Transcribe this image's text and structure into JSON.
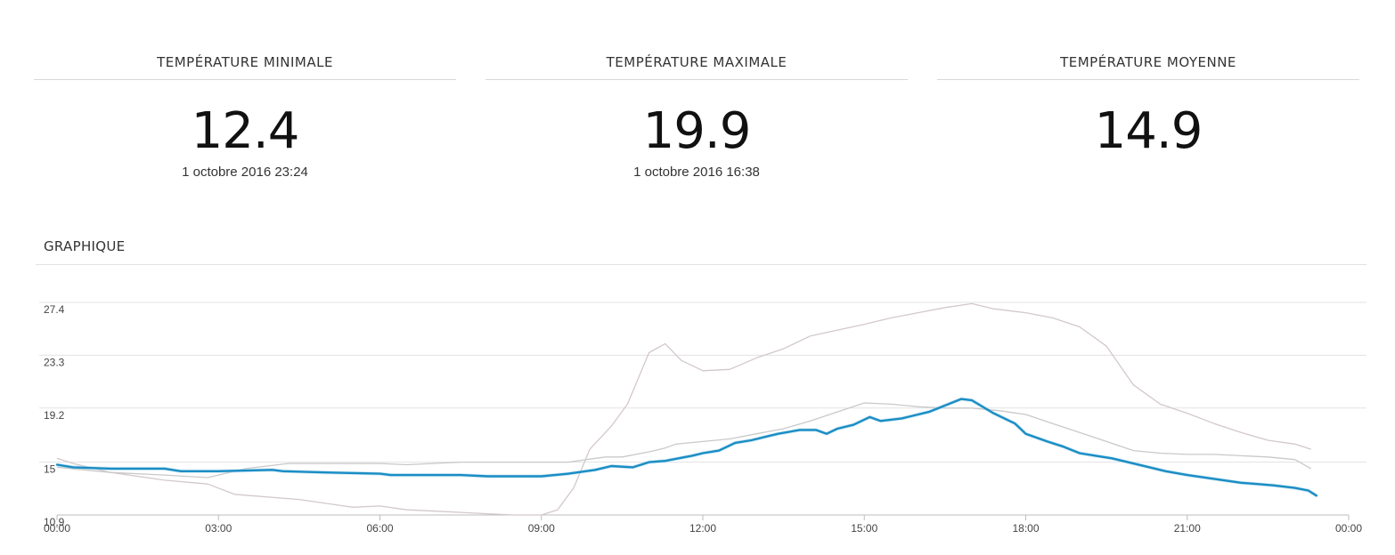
{
  "stats": [
    {
      "title": "TEMPÉRATURE MINIMALE",
      "value": "12.4",
      "date": "1 octobre 2016 23:24"
    },
    {
      "title": "TEMPÉRATURE MAXIMALE",
      "value": "19.9",
      "date": "1 octobre 2016 16:38"
    },
    {
      "title": "TEMPÉRATURE MOYENNE",
      "value": "14.9",
      "date": ""
    }
  ],
  "graph_title": "GRAPHIQUE",
  "colors": {
    "main": "#1a8dc4",
    "max": "#c9c9c9",
    "min": "#d3c8cc",
    "grid": "#e3e3e3"
  },
  "chart_data": {
    "type": "line",
    "y_ticks": [
      "27.4",
      "23.3",
      "19.2",
      "15",
      "10.9"
    ],
    "ylim": [
      10.9,
      27.4
    ],
    "x_ticks": [
      "00:00",
      "03:00",
      "06:00",
      "09:00",
      "12:00",
      "15:00",
      "18:00",
      "21:00",
      "00:00"
    ],
    "xlim": [
      0,
      24
    ],
    "grid": true,
    "series": [
      {
        "role": "main",
        "x": [
          0,
          0.3,
          1,
          2,
          2.3,
          3,
          4,
          4.2,
          5,
          6,
          6.2,
          7.5,
          8,
          9,
          9.5,
          10,
          10.3,
          10.7,
          11,
          11.3,
          11.8,
          12,
          12.3,
          12.6,
          12.9,
          13.2,
          13.4,
          13.8,
          14.1,
          14.3,
          14.5,
          14.8,
          15.1,
          15.3,
          15.7,
          16,
          16.2,
          16.5,
          16.8,
          17,
          17.4,
          17.8,
          18,
          18.4,
          18.7,
          19,
          19.3,
          19.6,
          20,
          20.3,
          20.6,
          21,
          21.5,
          22,
          22.3,
          22.6,
          23,
          23.25,
          23.4
        ],
        "y": [
          14.8,
          14.6,
          14.5,
          14.5,
          14.3,
          14.3,
          14.4,
          14.3,
          14.2,
          14.1,
          14.0,
          14.0,
          13.9,
          13.9,
          14.1,
          14.4,
          14.7,
          14.6,
          15.0,
          15.1,
          15.5,
          15.7,
          15.9,
          16.5,
          16.7,
          17.0,
          17.2,
          17.5,
          17.5,
          17.2,
          17.6,
          17.9,
          18.5,
          18.2,
          18.4,
          18.7,
          18.9,
          19.4,
          19.9,
          19.8,
          18.8,
          18.0,
          17.2,
          16.6,
          16.2,
          15.7,
          15.5,
          15.3,
          14.9,
          14.6,
          14.3,
          14.0,
          13.7,
          13.4,
          13.3,
          13.2,
          13.0,
          12.8,
          12.4
        ]
      },
      {
        "role": "max",
        "x": [
          0,
          0.5,
          1,
          2,
          2.8,
          3.5,
          4.3,
          5,
          6,
          6.5,
          7.5,
          8.5,
          9.5,
          10,
          10.2,
          10.5,
          11,
          11.3,
          11.5,
          12,
          12.5,
          13,
          13.5,
          14,
          14.5,
          15,
          15.5,
          16,
          16.5,
          17,
          17.5,
          18,
          18.5,
          19,
          19.5,
          20,
          20.5,
          21,
          21.5,
          22,
          22.5,
          23,
          23.3
        ],
        "y": [
          14.6,
          14.4,
          14.2,
          14.0,
          13.8,
          14.5,
          14.9,
          14.9,
          14.9,
          14.8,
          15.0,
          15.0,
          15.0,
          15.3,
          15.4,
          15.4,
          15.8,
          16.1,
          16.4,
          16.6,
          16.8,
          17.2,
          17.6,
          18.2,
          18.9,
          19.6,
          19.5,
          19.3,
          19.2,
          19.2,
          19.0,
          18.7,
          18.0,
          17.3,
          16.6,
          15.9,
          15.7,
          15.6,
          15.6,
          15.5,
          15.4,
          15.2,
          14.5
        ]
      },
      {
        "role": "min",
        "x": [
          0,
          0.3,
          1,
          2,
          2.8,
          3.3,
          4.5,
          5.5,
          6,
          6.5,
          7.5,
          8,
          8.5,
          9,
          9.3,
          9.6,
          9.9,
          10.3,
          10.6,
          11,
          11.3,
          11.6,
          12,
          12.5,
          13,
          13.5,
          14,
          15,
          15.5,
          16,
          16.5,
          17,
          17.4,
          18,
          18.5,
          19,
          19.5,
          20,
          20.5,
          21,
          21.5,
          22,
          22.5,
          23,
          23.3
        ],
        "y": [
          15.3,
          14.9,
          14.2,
          13.6,
          13.3,
          12.5,
          12.1,
          11.5,
          11.6,
          11.3,
          11.1,
          11.0,
          10.9,
          10.9,
          11.3,
          13.0,
          16.0,
          17.8,
          19.5,
          23.5,
          24.2,
          22.9,
          22.1,
          22.2,
          23.1,
          23.8,
          24.8,
          25.7,
          26.2,
          26.6,
          27.0,
          27.3,
          26.9,
          26.6,
          26.2,
          25.5,
          24.0,
          21.0,
          19.5,
          18.8,
          18.0,
          17.3,
          16.7,
          16.4,
          16.0
        ]
      }
    ]
  }
}
